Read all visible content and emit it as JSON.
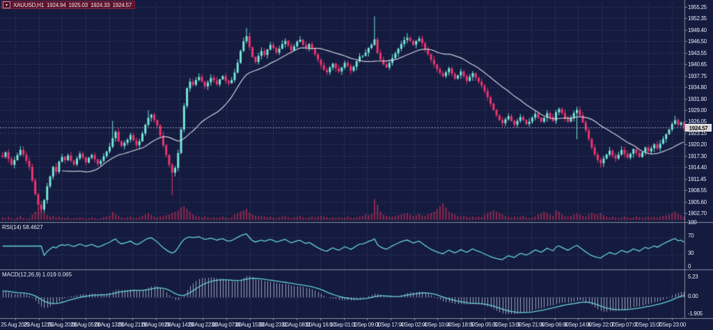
{
  "title": {
    "icon_glyph": "▾",
    "symbol_period": "XAUUSD,H1",
    "open": "1924.94",
    "high": "1925.03",
    "low": "1924.33",
    "close": "1924.57"
  },
  "price_axis": {
    "labels": [
      "1955.25",
      "1952.35",
      "1949.40",
      "1946.50",
      "1943.55",
      "1940.65",
      "1937.75",
      "1934.80",
      "1931.90",
      "1929.00",
      "1926.05",
      "1923.15",
      "1920.20",
      "1917.30",
      "1914.40",
      "1911.45",
      "1908.55",
      "1905.60",
      "1902.70"
    ],
    "current": "1924.57"
  },
  "time_axis": {
    "labels": [
      "25 Aug 2023",
      "25 Aug 12:00",
      "25 Aug 20:00",
      "28 Aug 05:00",
      "28 Aug 13:00",
      "28 Aug 21:00",
      "29 Aug 06:00",
      "29 Aug 14:00",
      "29 Aug 22:00",
      "30 Aug 07:00",
      "30 Aug 15:00",
      "30 Aug 23:00",
      "31 Aug 08:00",
      "31 Aug 16:00",
      "1 Sep 01:00",
      "1 Sep 09:00",
      "1 Sep 17:00",
      "4 Sep 02:00",
      "4 Sep 10:00",
      "4 Sep 18:00",
      "5 Sep 05:00",
      "5 Sep 13:00",
      "5 Sep 21:00",
      "6 Sep 06:00",
      "6 Sep 14:00",
      "6 Sep 22:00",
      "7 Sep 07:00",
      "7 Sep 15:00",
      "7 Sep 23:00"
    ]
  },
  "rsi": {
    "label": "RSI(14) 58.4627",
    "axis": [
      "100",
      "70",
      "30",
      "0"
    ],
    "axis_values": [
      100,
      70,
      30,
      0
    ],
    "levels": [
      70,
      30
    ]
  },
  "macd": {
    "label": "MACD(12,26,9) 1.019 0.065",
    "axis": [
      "5.23",
      "0.00",
      "-1.905"
    ],
    "axis_values": [
      5.23,
      0,
      -1.905
    ]
  },
  "colors": {
    "bg": "#141b3f",
    "grid": "rgba(150,162,205,0.42)",
    "separator": "#8a8f9e",
    "bull": "#78e8d8",
    "bear": "#f0356f",
    "ma_line": "#cfd3dc",
    "volume": "#93284e",
    "rsi_line": "#68d6dc",
    "macd_line": "#68d6dc",
    "macd_hist": "rgba(204,210,228,0.75)",
    "bid_line": "rgba(200,206,220,0.8)",
    "axis_text": "#e6e9f2",
    "tag_bg": "#d9d9d9",
    "tag_text": "#101010",
    "title_bg": "#5d132f"
  },
  "chart_data": {
    "type": "candlestick",
    "symbol": "XAUUSD",
    "timeframe": "H1",
    "x_range": "25 Aug 2023 00:00 - 7 Sep 2023 23:00",
    "y_range": [
      1902.7,
      1955.25
    ],
    "current_price": 1924.57,
    "ma_period": 21,
    "rsi_period": 14,
    "rsi_current": 58.4627,
    "rsi_levels": [
      70,
      30
    ],
    "macd_params": [
      12,
      26,
      9
    ],
    "macd_current": [
      1.019,
      0.065
    ],
    "macd_range": [
      -1.905,
      5.23
    ],
    "closes": [
      1917.0,
      1918.2,
      1916.5,
      1915.0,
      1916.2,
      1917.5,
      1918.8,
      1917.6,
      1916.0,
      1914.5,
      1911.0,
      1907.5,
      1904.8,
      1903.6,
      1906.0,
      1909.5,
      1912.0,
      1914.5,
      1913.2,
      1915.8,
      1917.0,
      1916.2,
      1917.4,
      1916.0,
      1915.1,
      1916.6,
      1917.8,
      1916.9,
      1915.6,
      1916.8,
      1917.5,
      1916.4,
      1915.2,
      1916.0,
      1917.2,
      1918.4,
      1919.6,
      1921.8,
      1923.4,
      1921.0,
      1919.8,
      1920.6,
      1921.4,
      1922.6,
      1921.2,
      1920.0,
      1921.0,
      1923.0,
      1925.2,
      1927.0,
      1927.8,
      1926.4,
      1925.0,
      1922.5,
      1920.0,
      1917.5,
      1915.0,
      1913.0,
      1914.2,
      1918.0,
      1924.0,
      1930.0,
      1934.5,
      1936.2,
      1935.4,
      1936.6,
      1937.4,
      1936.2,
      1935.0,
      1936.0,
      1937.2,
      1936.5,
      1935.5,
      1936.8,
      1937.6,
      1936.4,
      1935.8,
      1936.6,
      1938.5,
      1941.0,
      1944.0,
      1946.5,
      1947.8,
      1945.0,
      1942.5,
      1941.2,
      1942.8,
      1944.0,
      1943.0,
      1944.4,
      1945.6,
      1944.8,
      1943.6,
      1944.6,
      1945.8,
      1946.6,
      1945.4,
      1944.2,
      1945.2,
      1946.4,
      1946.9,
      1945.6,
      1944.8,
      1945.8,
      1944.6,
      1943.2,
      1941.8,
      1940.4,
      1939.2,
      1938.6,
      1939.8,
      1940.8,
      1939.6,
      1938.8,
      1939.8,
      1941.0,
      1940.2,
      1939.0,
      1940.0,
      1941.4,
      1942.6,
      1942.8,
      1943.6,
      1944.8,
      1945.6,
      1947.0,
      1943.5,
      1941.8,
      1940.6,
      1939.8,
      1941.0,
      1942.2,
      1943.4,
      1944.6,
      1945.8,
      1946.8,
      1947.4,
      1946.6,
      1945.6,
      1946.6,
      1947.2,
      1946.0,
      1944.6,
      1943.2,
      1941.8,
      1940.6,
      1939.4,
      1938.4,
      1937.6,
      1938.6,
      1939.6,
      1938.2,
      1937.0,
      1937.8,
      1938.8,
      1937.6,
      1936.4,
      1937.4,
      1938.4,
      1937.2,
      1936.2,
      1935.2,
      1933.8,
      1932.2,
      1930.6,
      1929.0,
      1927.6,
      1926.4,
      1925.6,
      1926.6,
      1927.4,
      1926.2,
      1925.2,
      1926.2,
      1927.2,
      1926.4,
      1925.4,
      1926.0,
      1927.0,
      1928.0,
      1927.0,
      1926.0,
      1927.0,
      1928.2,
      1927.2,
      1926.2,
      1928.4,
      1929.2,
      1928.2,
      1927.0,
      1926.0,
      1927.0,
      1928.2,
      1929.0,
      1927.6,
      1925.8,
      1923.8,
      1921.6,
      1919.4,
      1917.6,
      1916.2,
      1915.4,
      1916.6,
      1917.6,
      1918.6,
      1917.4,
      1916.6,
      1917.6,
      1918.8,
      1917.8,
      1916.8,
      1917.8,
      1919.0,
      1918.0,
      1917.0,
      1918.2,
      1919.4,
      1918.4,
      1919.2,
      1920.2,
      1919.2,
      1920.4,
      1921.6,
      1922.8,
      1924.0,
      1925.4,
      1926.4,
      1925.2,
      1925.8,
      1924.57
    ],
    "volumes": [
      4,
      3,
      5,
      3,
      2,
      4,
      6,
      3,
      2,
      3,
      8,
      12,
      16,
      16,
      10,
      7,
      5,
      6,
      4,
      5,
      4,
      3,
      4,
      2,
      3,
      3,
      4,
      3,
      2,
      3,
      4,
      3,
      2,
      3,
      4,
      5,
      6,
      12,
      8,
      6,
      4,
      3,
      4,
      5,
      3,
      3,
      4,
      6,
      8,
      10,
      7,
      5,
      4,
      5,
      6,
      7,
      8,
      10,
      12,
      14,
      18,
      20,
      16,
      12,
      8,
      6,
      5,
      4,
      5,
      4,
      3,
      4,
      3,
      4,
      5,
      4,
      3,
      4,
      8,
      10,
      12,
      14,
      16,
      10,
      8,
      6,
      5,
      6,
      5,
      4,
      5,
      4,
      3,
      4,
      5,
      6,
      4,
      3,
      4,
      5,
      6,
      4,
      3,
      4,
      5,
      4,
      5,
      6,
      5,
      4,
      3,
      4,
      3,
      4,
      3,
      4,
      5,
      4,
      3,
      4,
      5,
      6,
      8,
      7,
      9,
      30,
      22,
      12,
      8,
      6,
      5,
      5,
      6,
      7,
      8,
      9,
      10,
      8,
      6,
      7,
      9,
      7,
      6,
      8,
      10,
      12,
      16,
      20,
      24,
      18,
      12,
      10,
      8,
      6,
      5,
      6,
      5,
      4,
      5,
      4,
      5,
      4,
      8,
      10,
      12,
      14,
      12,
      10,
      8,
      6,
      5,
      4,
      5,
      4,
      5,
      6,
      4,
      3,
      4,
      5,
      8,
      10,
      12,
      10,
      8,
      6,
      14,
      12,
      8,
      6,
      5,
      6,
      8,
      10,
      8,
      6,
      5,
      8,
      10,
      9,
      8,
      10,
      7,
      5,
      4,
      5,
      4,
      3,
      4,
      5,
      4,
      3,
      4,
      5,
      4,
      3,
      4,
      5,
      4,
      5,
      4,
      5,
      6,
      7,
      8,
      10,
      12,
      9,
      7,
      5
    ],
    "wick_extremes": [
      {
        "i": 12,
        "low": 1903.5
      },
      {
        "i": 13,
        "low": 1902.8
      },
      {
        "i": 37,
        "high": 1926.2
      },
      {
        "i": 49,
        "high": 1928.9
      },
      {
        "i": 57,
        "low": 1907.2
      },
      {
        "i": 82,
        "high": 1949.9
      },
      {
        "i": 125,
        "high": 1952.9
      },
      {
        "i": 136,
        "high": 1948.6
      },
      {
        "i": 193,
        "high": 1929.8,
        "low": 1921.5
      },
      {
        "i": 201,
        "low": 1914.3
      },
      {
        "i": 226,
        "high": 1927.5
      }
    ]
  }
}
